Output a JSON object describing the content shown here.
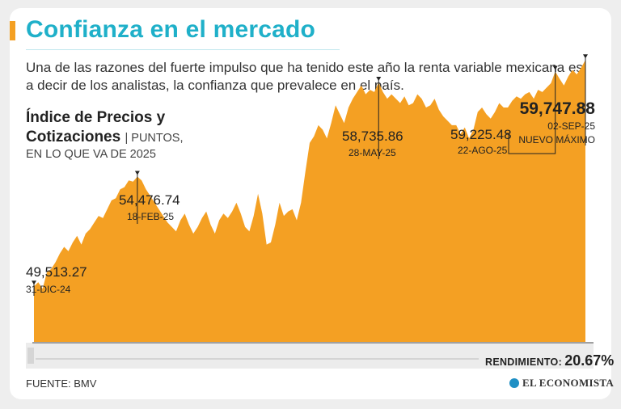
{
  "header": {
    "title": "Confianza en el mercado",
    "subtitle": "Una de las razones del fuerte impulso que ha tenido este año la renta variable mexicana es, a decir de los analistas, la confianza que prevalece en el país."
  },
  "index_title": {
    "line1": "Índice de Precios y",
    "line2": "Cotizaciones",
    "units_line1": "| PUNTOS,",
    "units_line2": "EN LO QUE VA DE 2025"
  },
  "chart_data": {
    "type": "area",
    "ylim": [
      47000,
      61000
    ],
    "fill_color": "#f4a023",
    "series": [
      {
        "values": [
          49513,
          49700,
          49400,
          50150,
          50300,
          50600,
          51000,
          51300,
          51100,
          51500,
          51800,
          51400,
          51900,
          52100,
          52400,
          52700,
          52600,
          53000,
          53400,
          53500,
          53900,
          54000,
          54300,
          54250,
          54476.74,
          54300,
          53900,
          53600,
          53300,
          53000,
          52700,
          52400,
          52200,
          52000,
          52500,
          52800,
          52300,
          51900,
          52200,
          52600,
          52900,
          52300,
          51900,
          52500,
          52800,
          52600,
          52900,
          53300,
          52800,
          52200,
          52000,
          52700,
          53700,
          52800,
          51400,
          51500,
          52300,
          53300,
          52700,
          52900,
          53000,
          52500,
          53300,
          54700,
          56000,
          56300,
          56800,
          56600,
          56200,
          56900,
          57700,
          57300,
          56900,
          57600,
          58000,
          58300,
          58600,
          58200,
          58400,
          58300,
          58735.86,
          58300,
          58000,
          58200,
          58000,
          57800,
          58100,
          57700,
          57800,
          58200,
          58000,
          57600,
          57700,
          58000,
          57500,
          57200,
          57000,
          56800,
          56800,
          56400,
          56700,
          56200,
          56600,
          57400,
          57600,
          57300,
          57100,
          57400,
          57800,
          57600,
          57600,
          57900,
          58100,
          58000,
          58200,
          58300,
          58000,
          58400,
          58300,
          58500,
          58700,
          59225.48,
          58900,
          58600,
          59000,
          59300,
          59100,
          59400,
          59747.88
        ]
      }
    ],
    "annotations": [
      {
        "value": "49,513.27",
        "date": "31-DIC-24"
      },
      {
        "value": "54,476.74",
        "date": "18-FEB-25"
      },
      {
        "value": "58,735.86",
        "date": "28-MAY-25"
      },
      {
        "value": "59,225.48",
        "date": "22-AGO-25"
      },
      {
        "value": "59,747.88",
        "date": "02-SEP-25",
        "note": "NUEVO MÁXIMO"
      }
    ]
  },
  "rendimiento": {
    "label": "RENDIMIENTO",
    "value": "20.67%"
  },
  "source": "FUENTE: BMV",
  "brand": {
    "name": "EL ECONOMISTA",
    "color": "#1f8fc4"
  }
}
